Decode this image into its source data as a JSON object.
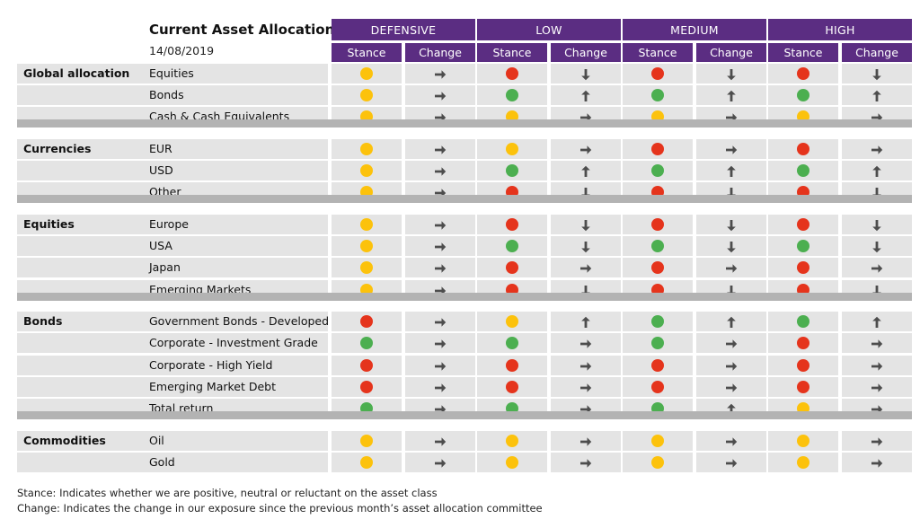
{
  "header": {
    "title": "Current Asset Allocation",
    "date": "14/08/2019",
    "groups": [
      "DEFENSIVE",
      "LOW",
      "MEDIUM",
      "HIGH"
    ],
    "stance_label": "Stance",
    "change_label": "Change"
  },
  "colors": {
    "header": "#5b2d82",
    "green": "#4caf50",
    "amber": "#fcc20c",
    "red": "#e5341c",
    "arrow": "#4d4d4d"
  },
  "sections": [
    {
      "name": "Global allocation",
      "rows": [
        {
          "label": "Equities",
          "cells": [
            [
              "amber",
              "right"
            ],
            [
              "red",
              "down"
            ],
            [
              "red",
              "down"
            ],
            [
              "red",
              "down"
            ]
          ]
        },
        {
          "label": "Bonds",
          "cells": [
            [
              "amber",
              "right"
            ],
            [
              "green",
              "up"
            ],
            [
              "green",
              "up"
            ],
            [
              "green",
              "up"
            ]
          ]
        },
        {
          "label": "Cash & Cash Equivalents",
          "cells": [
            [
              "amber",
              "right"
            ],
            [
              "amber",
              "right"
            ],
            [
              "amber",
              "right"
            ],
            [
              "amber",
              "right"
            ]
          ]
        }
      ]
    },
    {
      "name": "Currencies",
      "rows": [
        {
          "label": "EUR",
          "cells": [
            [
              "amber",
              "right"
            ],
            [
              "amber",
              "right"
            ],
            [
              "red",
              "right"
            ],
            [
              "red",
              "right"
            ]
          ]
        },
        {
          "label": "USD",
          "cells": [
            [
              "amber",
              "right"
            ],
            [
              "green",
              "up"
            ],
            [
              "green",
              "up"
            ],
            [
              "green",
              "up"
            ]
          ]
        },
        {
          "label": "Other",
          "cells": [
            [
              "amber",
              "right"
            ],
            [
              "red",
              "down"
            ],
            [
              "red",
              "down"
            ],
            [
              "red",
              "down"
            ]
          ]
        }
      ]
    },
    {
      "name": "Equities",
      "rows": [
        {
          "label": "Europe",
          "cells": [
            [
              "amber",
              "right"
            ],
            [
              "red",
              "down"
            ],
            [
              "red",
              "down"
            ],
            [
              "red",
              "down"
            ]
          ]
        },
        {
          "label": "USA",
          "cells": [
            [
              "amber",
              "right"
            ],
            [
              "green",
              "down"
            ],
            [
              "green",
              "down"
            ],
            [
              "green",
              "down"
            ]
          ]
        },
        {
          "label": "Japan",
          "cells": [
            [
              "amber",
              "right"
            ],
            [
              "red",
              "right"
            ],
            [
              "red",
              "right"
            ],
            [
              "red",
              "right"
            ]
          ]
        },
        {
          "label": "Emerging Markets",
          "cells": [
            [
              "amber",
              "right"
            ],
            [
              "red",
              "down"
            ],
            [
              "red",
              "down"
            ],
            [
              "red",
              "down"
            ]
          ]
        }
      ]
    },
    {
      "name": "Bonds",
      "rows": [
        {
          "label": "Government Bonds - Developed",
          "cells": [
            [
              "red",
              "right"
            ],
            [
              "amber",
              "up"
            ],
            [
              "green",
              "up"
            ],
            [
              "green",
              "up"
            ]
          ]
        },
        {
          "label": "Corporate - Investment Grade",
          "cells": [
            [
              "green",
              "right"
            ],
            [
              "green",
              "right"
            ],
            [
              "green",
              "right"
            ],
            [
              "red",
              "right"
            ]
          ]
        },
        {
          "label": "Corporate - High Yield",
          "cells": [
            [
              "red",
              "right"
            ],
            [
              "red",
              "right"
            ],
            [
              "red",
              "right"
            ],
            [
              "red",
              "right"
            ]
          ]
        },
        {
          "label": "Emerging Market Debt",
          "cells": [
            [
              "red",
              "right"
            ],
            [
              "red",
              "right"
            ],
            [
              "red",
              "right"
            ],
            [
              "red",
              "right"
            ]
          ]
        },
        {
          "label": "Total return",
          "cells": [
            [
              "green",
              "right"
            ],
            [
              "green",
              "right"
            ],
            [
              "green",
              "up"
            ],
            [
              "amber",
              "right"
            ]
          ]
        }
      ]
    },
    {
      "name": "Commodities",
      "rows": [
        {
          "label": "Oil",
          "cells": [
            [
              "amber",
              "right"
            ],
            [
              "amber",
              "right"
            ],
            [
              "amber",
              "right"
            ],
            [
              "amber",
              "right"
            ]
          ]
        },
        {
          "label": "Gold",
          "cells": [
            [
              "amber",
              "right"
            ],
            [
              "amber",
              "right"
            ],
            [
              "amber",
              "right"
            ],
            [
              "amber",
              "right"
            ]
          ]
        }
      ]
    }
  ],
  "notes": [
    "Stance: Indicates whether we are positive, neutral or reluctant on the asset class",
    "Change: Indicates the change in our exposure since the previous month’s asset allocation committee"
  ]
}
